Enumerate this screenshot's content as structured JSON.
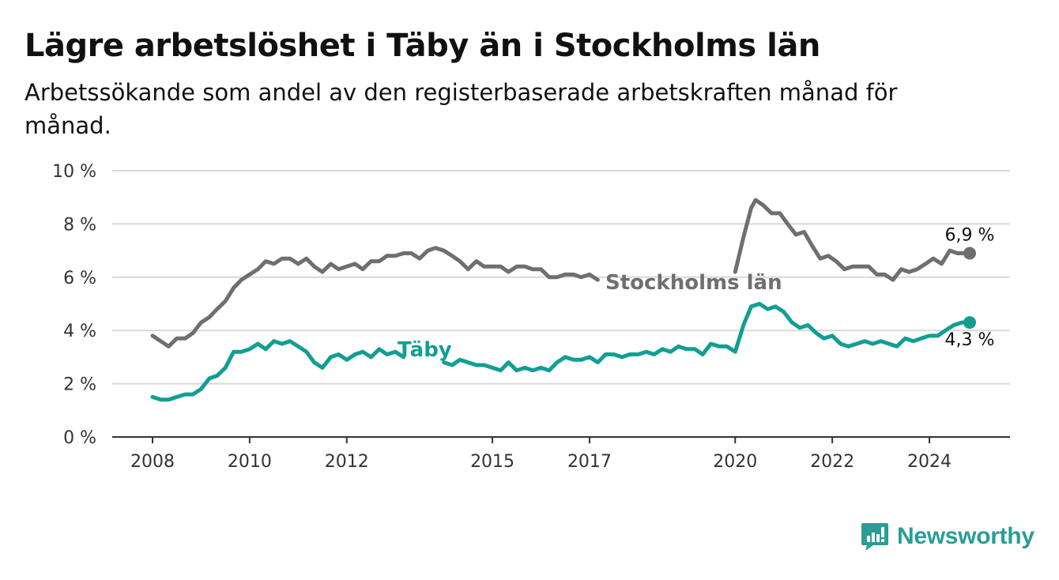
{
  "title": "Lägre arbetslöshet i Täby än i Stockholms län",
  "subtitle": "Arbetssökande som andel av den registerbaserade arbetskraften månad för månad.",
  "brand": {
    "name": "Newsworthy",
    "icon": "newsworthy-logo-icon",
    "color": "#2a9d96"
  },
  "chart_data": {
    "type": "line",
    "title": "Lägre arbetslöshet i Täby än i Stockholms län",
    "subtitle": "Arbetssökande som andel av den registerbaserade arbetskraften månad för månad.",
    "xlabel": "",
    "ylabel": "",
    "ylim": [
      0,
      10
    ],
    "yticks": [
      0,
      2,
      4,
      6,
      8,
      10
    ],
    "ytick_labels": [
      "0 %",
      "2 %",
      "4 %",
      "6 %",
      "8 %",
      "10 %"
    ],
    "xticks": [
      2008,
      2010,
      2012,
      2015,
      2017,
      2020,
      2022,
      2024
    ],
    "xtick_labels": [
      "2008",
      "2010",
      "2012",
      "2015",
      "2017",
      "2020",
      "2022",
      "2024"
    ],
    "grid": true,
    "legend": "inline labels",
    "series": [
      {
        "name": "Stockholms län",
        "color": "#6e6e73",
        "end_label": "6,9 %",
        "points": [
          [
            2008.0,
            3.8
          ],
          [
            2008.17,
            3.6
          ],
          [
            2008.33,
            3.4
          ],
          [
            2008.5,
            3.7
          ],
          [
            2008.67,
            3.7
          ],
          [
            2008.83,
            3.9
          ],
          [
            2009.0,
            4.3
          ],
          [
            2009.17,
            4.5
          ],
          [
            2009.33,
            4.8
          ],
          [
            2009.5,
            5.1
          ],
          [
            2009.67,
            5.6
          ],
          [
            2009.83,
            5.9
          ],
          [
            2010.0,
            6.1
          ],
          [
            2010.17,
            6.3
          ],
          [
            2010.33,
            6.6
          ],
          [
            2010.5,
            6.5
          ],
          [
            2010.67,
            6.7
          ],
          [
            2010.83,
            6.7
          ],
          [
            2011.0,
            6.5
          ],
          [
            2011.17,
            6.7
          ],
          [
            2011.33,
            6.4
          ],
          [
            2011.5,
            6.2
          ],
          [
            2011.67,
            6.5
          ],
          [
            2011.83,
            6.3
          ],
          [
            2012.0,
            6.4
          ],
          [
            2012.17,
            6.5
          ],
          [
            2012.33,
            6.3
          ],
          [
            2012.5,
            6.6
          ],
          [
            2012.67,
            6.6
          ],
          [
            2012.83,
            6.8
          ],
          [
            2013.0,
            6.8
          ],
          [
            2013.17,
            6.9
          ],
          [
            2013.33,
            6.9
          ],
          [
            2013.5,
            6.7
          ],
          [
            2013.67,
            7.0
          ],
          [
            2013.83,
            7.1
          ],
          [
            2014.0,
            7.0
          ],
          [
            2014.17,
            6.8
          ],
          [
            2014.33,
            6.6
          ],
          [
            2014.5,
            6.3
          ],
          [
            2014.67,
            6.6
          ],
          [
            2014.83,
            6.4
          ],
          [
            2015.0,
            6.4
          ],
          [
            2015.17,
            6.4
          ],
          [
            2015.33,
            6.2
          ],
          [
            2015.5,
            6.4
          ],
          [
            2015.67,
            6.4
          ],
          [
            2015.83,
            6.3
          ],
          [
            2016.0,
            6.3
          ],
          [
            2016.17,
            6.0
          ],
          [
            2016.33,
            6.0
          ],
          [
            2016.5,
            6.1
          ],
          [
            2016.67,
            6.1
          ],
          [
            2016.83,
            6.0
          ],
          [
            2017.0,
            6.1
          ],
          [
            2017.17,
            5.9
          ]
        ],
        "points_after_gap": [
          [
            2020.0,
            6.2
          ],
          [
            2020.17,
            7.5
          ],
          [
            2020.33,
            8.6
          ],
          [
            2020.42,
            8.9
          ],
          [
            2020.58,
            8.7
          ],
          [
            2020.75,
            8.4
          ],
          [
            2020.92,
            8.4
          ],
          [
            2021.08,
            8.0
          ],
          [
            2021.25,
            7.6
          ],
          [
            2021.42,
            7.7
          ],
          [
            2021.58,
            7.2
          ],
          [
            2021.75,
            6.7
          ],
          [
            2021.92,
            6.8
          ],
          [
            2022.08,
            6.6
          ],
          [
            2022.25,
            6.3
          ],
          [
            2022.42,
            6.4
          ],
          [
            2022.58,
            6.4
          ],
          [
            2022.75,
            6.4
          ],
          [
            2022.92,
            6.1
          ],
          [
            2023.08,
            6.1
          ],
          [
            2023.25,
            5.9
          ],
          [
            2023.42,
            6.3
          ],
          [
            2023.58,
            6.2
          ],
          [
            2023.75,
            6.3
          ],
          [
            2023.92,
            6.5
          ],
          [
            2024.08,
            6.7
          ],
          [
            2024.25,
            6.5
          ],
          [
            2024.42,
            7.0
          ],
          [
            2024.58,
            6.9
          ],
          [
            2024.83,
            6.9
          ]
        ]
      },
      {
        "name": "Täby",
        "color": "#139e94",
        "end_label": "4,3 %",
        "points": [
          [
            2008.0,
            1.5
          ],
          [
            2008.17,
            1.4
          ],
          [
            2008.33,
            1.4
          ],
          [
            2008.5,
            1.5
          ],
          [
            2008.67,
            1.6
          ],
          [
            2008.83,
            1.6
          ],
          [
            2009.0,
            1.8
          ],
          [
            2009.17,
            2.2
          ],
          [
            2009.33,
            2.3
          ],
          [
            2009.5,
            2.6
          ],
          [
            2009.67,
            3.2
          ],
          [
            2009.83,
            3.2
          ],
          [
            2010.0,
            3.3
          ],
          [
            2010.17,
            3.5
          ],
          [
            2010.33,
            3.3
          ],
          [
            2010.5,
            3.6
          ],
          [
            2010.67,
            3.5
          ],
          [
            2010.83,
            3.6
          ],
          [
            2011.0,
            3.4
          ],
          [
            2011.17,
            3.2
          ],
          [
            2011.33,
            2.8
          ],
          [
            2011.5,
            2.6
          ],
          [
            2011.67,
            3.0
          ],
          [
            2011.83,
            3.1
          ],
          [
            2012.0,
            2.9
          ],
          [
            2012.17,
            3.1
          ],
          [
            2012.33,
            3.2
          ],
          [
            2012.5,
            3.0
          ],
          [
            2012.67,
            3.3
          ],
          [
            2012.83,
            3.1
          ],
          [
            2013.0,
            3.2
          ],
          [
            2013.17,
            3.0
          ]
        ],
        "points_after_gap": [
          [
            2014.0,
            2.8
          ],
          [
            2014.17,
            2.7
          ],
          [
            2014.33,
            2.9
          ],
          [
            2014.5,
            2.8
          ],
          [
            2014.67,
            2.7
          ],
          [
            2014.83,
            2.7
          ],
          [
            2015.0,
            2.6
          ],
          [
            2015.17,
            2.5
          ],
          [
            2015.33,
            2.8
          ],
          [
            2015.5,
            2.5
          ],
          [
            2015.67,
            2.6
          ],
          [
            2015.83,
            2.5
          ],
          [
            2016.0,
            2.6
          ],
          [
            2016.17,
            2.5
          ],
          [
            2016.33,
            2.8
          ],
          [
            2016.5,
            3.0
          ],
          [
            2016.67,
            2.9
          ],
          [
            2016.83,
            2.9
          ],
          [
            2017.0,
            3.0
          ],
          [
            2017.17,
            2.8
          ],
          [
            2017.33,
            3.1
          ],
          [
            2017.5,
            3.1
          ],
          [
            2017.67,
            3.0
          ],
          [
            2017.83,
            3.1
          ],
          [
            2018.0,
            3.1
          ],
          [
            2018.17,
            3.2
          ],
          [
            2018.33,
            3.1
          ],
          [
            2018.5,
            3.3
          ],
          [
            2018.67,
            3.2
          ],
          [
            2018.83,
            3.4
          ],
          [
            2019.0,
            3.3
          ],
          [
            2019.17,
            3.3
          ],
          [
            2019.33,
            3.1
          ],
          [
            2019.5,
            3.5
          ],
          [
            2019.67,
            3.4
          ],
          [
            2019.83,
            3.4
          ],
          [
            2020.0,
            3.2
          ],
          [
            2020.17,
            4.2
          ],
          [
            2020.33,
            4.9
          ],
          [
            2020.5,
            5.0
          ],
          [
            2020.67,
            4.8
          ],
          [
            2020.83,
            4.9
          ],
          [
            2021.0,
            4.7
          ],
          [
            2021.17,
            4.3
          ],
          [
            2021.33,
            4.1
          ],
          [
            2021.5,
            4.2
          ],
          [
            2021.67,
            3.9
          ],
          [
            2021.83,
            3.7
          ],
          [
            2022.0,
            3.8
          ],
          [
            2022.17,
            3.5
          ],
          [
            2022.33,
            3.4
          ],
          [
            2022.5,
            3.5
          ],
          [
            2022.67,
            3.6
          ],
          [
            2022.83,
            3.5
          ],
          [
            2023.0,
            3.6
          ],
          [
            2023.17,
            3.5
          ],
          [
            2023.33,
            3.4
          ],
          [
            2023.5,
            3.7
          ],
          [
            2023.67,
            3.6
          ],
          [
            2023.83,
            3.7
          ],
          [
            2024.0,
            3.8
          ],
          [
            2024.17,
            3.8
          ],
          [
            2024.33,
            4.0
          ],
          [
            2024.5,
            4.2
          ],
          [
            2024.67,
            4.3
          ],
          [
            2024.83,
            4.3
          ]
        ]
      }
    ]
  }
}
